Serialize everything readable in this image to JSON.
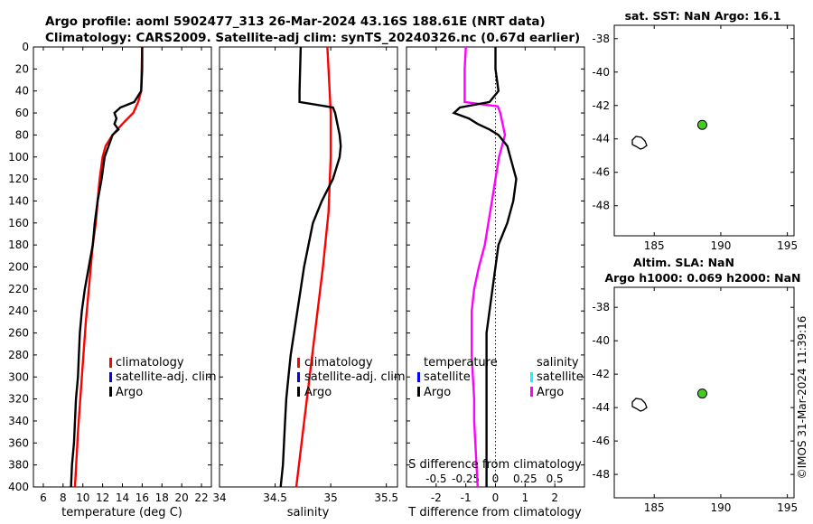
{
  "figure": {
    "title_line1": "Argo profile: aoml 5902477_313 26-Mar-2024 43.16S 188.61E (NRT data)",
    "title_line2": "Climatology: CARS2009. Satellite-adj clim: synTS_20240326.nc (0.67d earlier)",
    "credit": "©IMOS 31-Mar-2024 11:39:16"
  },
  "colors": {
    "argo": "#000000",
    "climatology": "#ff0000",
    "satellite_adj_clim": "#0000ff",
    "salinity_argo": "#ff00ff",
    "salinity_satellite": "#00ffff",
    "float_marker": "#44cc22"
  },
  "depth_ticks": [
    "0",
    "20",
    "40",
    "60",
    "80",
    "100",
    "120",
    "140",
    "160",
    "180",
    "200",
    "220",
    "240",
    "260",
    "280",
    "300",
    "320",
    "340",
    "360",
    "380",
    "400"
  ],
  "chart_data": [
    {
      "type": "line",
      "name": "temperature",
      "xlabel": "temperature (deg C)",
      "ylabel": "",
      "xlim": [
        5,
        23
      ],
      "ylim": [
        400,
        0
      ],
      "x_ticks": [
        "6",
        "8",
        "10",
        "12",
        "14",
        "16",
        "18",
        "20",
        "22"
      ],
      "legend": [
        "climatology",
        "satellite-adj. clim",
        "Argo"
      ],
      "series": [
        {
          "name": "climatology",
          "depth": [
            0,
            40,
            50,
            60,
            70,
            80,
            90,
            100,
            120,
            140,
            160,
            180,
            200,
            250,
            300,
            350,
            400
          ],
          "values": [
            16.0,
            15.9,
            15.6,
            15.1,
            14.0,
            13.0,
            12.3,
            12.0,
            11.7,
            11.5,
            11.3,
            11.0,
            10.8,
            10.3,
            9.9,
            9.5,
            9.2
          ]
        },
        {
          "name": "Argo",
          "depth": [
            0,
            20,
            40,
            50,
            55,
            60,
            65,
            70,
            75,
            80,
            90,
            100,
            120,
            140,
            160,
            180,
            200,
            220,
            240,
            260,
            280,
            300,
            320,
            340,
            360,
            380,
            400
          ],
          "values": [
            16.0,
            16.0,
            15.9,
            15.2,
            13.8,
            13.2,
            13.4,
            13.2,
            13.6,
            13.0,
            12.6,
            12.2,
            11.9,
            11.5,
            11.2,
            11.0,
            10.6,
            10.2,
            9.9,
            9.7,
            9.6,
            9.5,
            9.3,
            9.2,
            9.1,
            8.9,
            8.8
          ]
        }
      ]
    },
    {
      "type": "line",
      "name": "salinity",
      "xlabel": "salinity",
      "xlim": [
        34,
        35.6
      ],
      "ylim": [
        400,
        0
      ],
      "x_ticks": [
        "34",
        "34.5",
        "35",
        "35.5"
      ],
      "legend": [
        "climatology",
        "satellite-adj. clim",
        "Argo"
      ],
      "series": [
        {
          "name": "climatology",
          "depth": [
            0,
            40,
            60,
            100,
            150,
            200,
            250,
            300,
            350,
            400
          ],
          "values": [
            34.97,
            34.99,
            35.0,
            35.0,
            34.98,
            34.93,
            34.87,
            34.81,
            34.75,
            34.69
          ]
        },
        {
          "name": "Argo",
          "depth": [
            0,
            40,
            50,
            55,
            60,
            70,
            80,
            90,
            100,
            110,
            120,
            140,
            160,
            180,
            200,
            220,
            240,
            260,
            280,
            300,
            320,
            340,
            360,
            380,
            400
          ],
          "values": [
            34.73,
            34.72,
            34.72,
            35.02,
            35.04,
            35.06,
            35.08,
            35.09,
            35.08,
            35.05,
            35.02,
            34.92,
            34.84,
            34.8,
            34.76,
            34.73,
            34.7,
            34.67,
            34.64,
            34.62,
            34.6,
            34.59,
            34.58,
            34.57,
            34.55
          ]
        }
      ]
    },
    {
      "type": "line",
      "name": "difference",
      "xlabel": "T difference from climatology",
      "xlabel_top": "S difference from climatology",
      "xlim": [
        -3,
        3
      ],
      "xlim_s": [
        -0.75,
        0.75
      ],
      "ylim": [
        400,
        0
      ],
      "x_ticks": [
        "-2",
        "-1",
        "0",
        "1",
        "2"
      ],
      "x_ticks_s": [
        "-0.5",
        "-0.25",
        "0",
        "0.25",
        "0.5"
      ],
      "legend_headers": [
        "temperature",
        "salinity"
      ],
      "legend_temp": [
        "satellite",
        "Argo"
      ],
      "legend_sal": [
        "satellite",
        "Argo"
      ],
      "series": [
        {
          "name": "temperature Argo",
          "depth": [
            0,
            20,
            40,
            50,
            55,
            60,
            65,
            70,
            75,
            80,
            90,
            100,
            120,
            140,
            160,
            180,
            200,
            220,
            240,
            260,
            280,
            300,
            320,
            340,
            360,
            380,
            400
          ],
          "values": [
            0.0,
            0.0,
            0.1,
            -0.2,
            -1.2,
            -1.4,
            -0.9,
            -0.6,
            -0.2,
            0.1,
            0.4,
            0.5,
            0.7,
            0.6,
            0.4,
            0.1,
            0.0,
            -0.1,
            -0.2,
            -0.3,
            -0.3,
            -0.3,
            -0.3,
            -0.3,
            -0.3,
            -0.3,
            -0.3
          ]
        },
        {
          "name": "salinity Argo",
          "depth": [
            0,
            20,
            40,
            50,
            54,
            60,
            80,
            100,
            120,
            140,
            160,
            180,
            200,
            220,
            240,
            260,
            280,
            300,
            320,
            340,
            360,
            380,
            400
          ],
          "values": [
            -0.25,
            -0.26,
            -0.26,
            -0.26,
            0.02,
            0.04,
            0.08,
            0.03,
            0.0,
            -0.03,
            -0.06,
            -0.09,
            -0.14,
            -0.18,
            -0.2,
            -0.2,
            -0.2,
            -0.19,
            -0.18,
            -0.18,
            -0.17,
            -0.16,
            -0.15
          ]
        }
      ]
    },
    {
      "type": "scatter",
      "name": "sst_map",
      "title": "sat. SST: NaN Argo: 16.1",
      "xlim": [
        182,
        195.5
      ],
      "ylim": [
        -49.8,
        -37.2
      ],
      "x_ticks": [
        "185",
        "190",
        "195"
      ],
      "y_ticks": [
        "-38",
        "-40",
        "-42",
        "-44",
        "-46",
        "-48"
      ],
      "float_position": {
        "x": 188.61,
        "y": -43.16
      }
    },
    {
      "type": "scatter",
      "name": "sla_map",
      "title_line1": "Altim. SLA: NaN",
      "title_line2": "Argo h1000: 0.069 h2000: NaN",
      "xlim": [
        182,
        195.5
      ],
      "ylim": [
        -49.4,
        -36.8
      ],
      "x_ticks": [
        "185",
        "190",
        "195"
      ],
      "y_ticks": [
        "-38",
        "-40",
        "-42",
        "-44",
        "-46",
        "-48"
      ],
      "float_position": {
        "x": 188.61,
        "y": -43.16
      }
    }
  ]
}
